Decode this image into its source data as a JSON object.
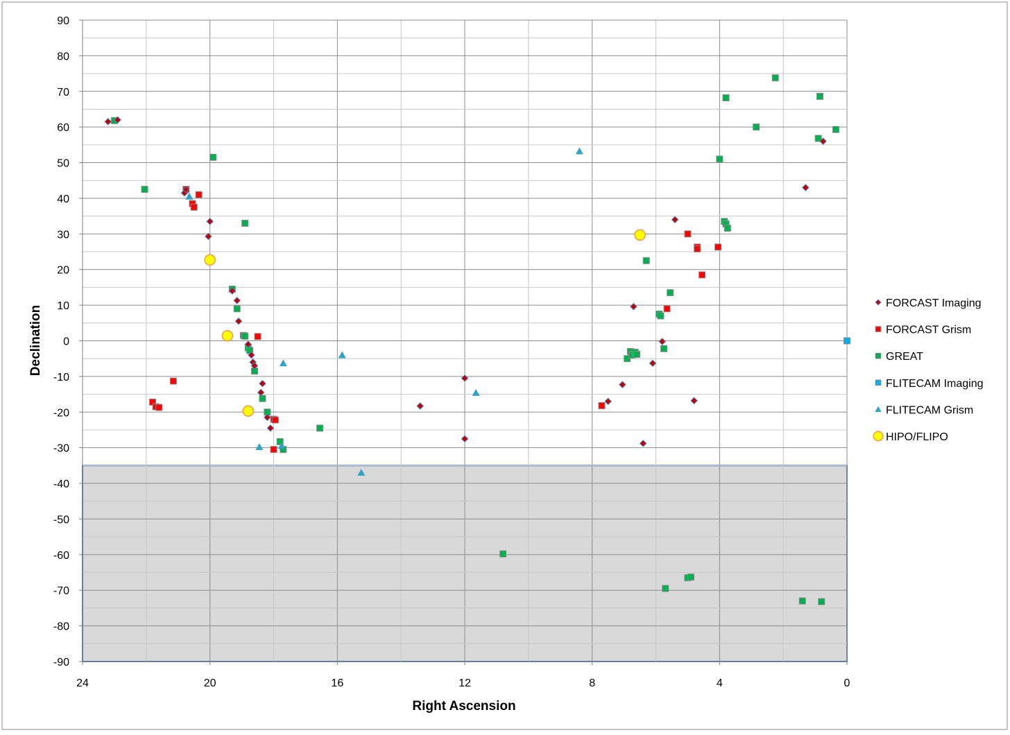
{
  "chart_data": {
    "type": "scatter",
    "xlabel": "Right Ascension",
    "ylabel": "Declination",
    "xlim": [
      24,
      0
    ],
    "ylim": [
      -90,
      90
    ],
    "x_ticks": [
      "24",
      "20",
      "16",
      "12",
      "8",
      "4",
      "0"
    ],
    "y_ticks": [
      "90",
      "80",
      "70",
      "60",
      "50",
      "40",
      "30",
      "20",
      "10",
      "0",
      "-10",
      "-20",
      "-30",
      "-40",
      "-50",
      "-60",
      "-70",
      "-80",
      "-90"
    ],
    "grid": true,
    "legend_position": "right",
    "shaded_region": {
      "x": [
        24,
        0
      ],
      "y": [
        -90,
        -35
      ],
      "color": "#d9d9d9"
    },
    "series": [
      {
        "name": "FORCAST Imaging",
        "marker": "diamond",
        "color": "#c00000",
        "points": [
          [
            23.2,
            61.5
          ],
          [
            22.9,
            62
          ],
          [
            20.8,
            41.5
          ],
          [
            20.75,
            42.5
          ],
          [
            20.0,
            33.5
          ],
          [
            20.05,
            29.3
          ],
          [
            19.3,
            14
          ],
          [
            19.15,
            11.3
          ],
          [
            19.1,
            5.5
          ],
          [
            18.8,
            -1
          ],
          [
            18.7,
            -4
          ],
          [
            18.65,
            -6
          ],
          [
            18.6,
            -7
          ],
          [
            18.35,
            -12
          ],
          [
            18.4,
            -14.5
          ],
          [
            18.2,
            -21.5
          ],
          [
            18.1,
            -24.5
          ],
          [
            13.4,
            -18.3
          ],
          [
            12.0,
            -10.5
          ],
          [
            12.0,
            -27.5
          ],
          [
            7.5,
            -17
          ],
          [
            7.05,
            -12.3
          ],
          [
            6.7,
            9.6
          ],
          [
            6.4,
            -28.8
          ],
          [
            6.1,
            -6.3
          ],
          [
            5.8,
            -0.2
          ],
          [
            5.4,
            34
          ],
          [
            4.8,
            -16.8
          ],
          [
            1.3,
            43
          ],
          [
            0.75,
            56
          ]
        ]
      },
      {
        "name": "FORCAST Grism",
        "marker": "square",
        "color": "#ff0000",
        "points": [
          [
            20.75,
            42.5
          ],
          [
            20.35,
            41
          ],
          [
            20.55,
            38.5
          ],
          [
            20.5,
            37.5
          ],
          [
            21.15,
            -11.3
          ],
          [
            21.8,
            -17.2
          ],
          [
            21.7,
            -18.5
          ],
          [
            21.6,
            -18.7
          ],
          [
            18.5,
            1.2
          ],
          [
            18.0,
            -22
          ],
          [
            17.95,
            -22.2
          ],
          [
            18.0,
            -30.5
          ],
          [
            7.7,
            -18.2
          ],
          [
            5.65,
            9
          ],
          [
            5.0,
            30
          ],
          [
            4.7,
            26.3
          ],
          [
            4.7,
            25.8
          ],
          [
            4.05,
            26.3
          ],
          [
            4.55,
            18.5
          ]
        ]
      },
      {
        "name": "GREAT",
        "marker": "square",
        "color": "#00b050",
        "points": [
          [
            23.0,
            61.8
          ],
          [
            22.05,
            42.5
          ],
          [
            19.9,
            51.5
          ],
          [
            18.9,
            33
          ],
          [
            19.3,
            14.5
          ],
          [
            19.15,
            9
          ],
          [
            18.95,
            1.5
          ],
          [
            18.9,
            1.3
          ],
          [
            18.8,
            -2
          ],
          [
            18.75,
            -2.7
          ],
          [
            18.6,
            -8.5
          ],
          [
            18.35,
            -16.2
          ],
          [
            18.2,
            -20
          ],
          [
            17.8,
            -28.3
          ],
          [
            17.7,
            -30.5
          ],
          [
            16.55,
            -24.5
          ],
          [
            10.8,
            -59.8
          ],
          [
            2.25,
            73.8
          ],
          [
            3.8,
            68.2
          ],
          [
            0.85,
            68.6
          ],
          [
            2.85,
            60
          ],
          [
            0.35,
            59.3
          ],
          [
            0.9,
            56.8
          ],
          [
            4.0,
            51
          ],
          [
            3.85,
            33.5
          ],
          [
            3.8,
            32.8
          ],
          [
            3.75,
            31.6
          ],
          [
            6.3,
            22.5
          ],
          [
            5.55,
            13.5
          ],
          [
            5.9,
            7.5
          ],
          [
            5.85,
            7
          ],
          [
            6.9,
            -5
          ],
          [
            6.8,
            -3
          ],
          [
            6.75,
            -4
          ],
          [
            6.65,
            -3.2
          ],
          [
            6.6,
            -3.8
          ],
          [
            5.75,
            -2.2
          ],
          [
            5.7,
            -69.5
          ],
          [
            5.0,
            -66.5
          ],
          [
            4.9,
            -66.3
          ],
          [
            1.4,
            -73
          ],
          [
            0.8,
            -73.2
          ]
        ]
      },
      {
        "name": "FLITECAM Imaging",
        "marker": "square",
        "color": "#00b0f0",
        "points": [
          [
            0.0,
            0
          ]
        ]
      },
      {
        "name": "FLITECAM Grism",
        "marker": "triangle",
        "color": "#31a3c4",
        "points": [
          [
            20.65,
            40.5
          ],
          [
            8.4,
            53.2
          ],
          [
            15.85,
            -4
          ],
          [
            17.7,
            -6.3
          ],
          [
            11.65,
            -14.6
          ],
          [
            18.45,
            -29.8
          ],
          [
            17.75,
            -29.5
          ],
          [
            15.25,
            -37
          ]
        ]
      },
      {
        "name": "HIPO/FLIPO",
        "marker": "circle",
        "color": "#ffff00",
        "points": [
          [
            20.0,
            22.7
          ],
          [
            19.45,
            1.4
          ],
          [
            18.8,
            -19.7
          ],
          [
            6.5,
            29.7
          ]
        ]
      }
    ]
  }
}
